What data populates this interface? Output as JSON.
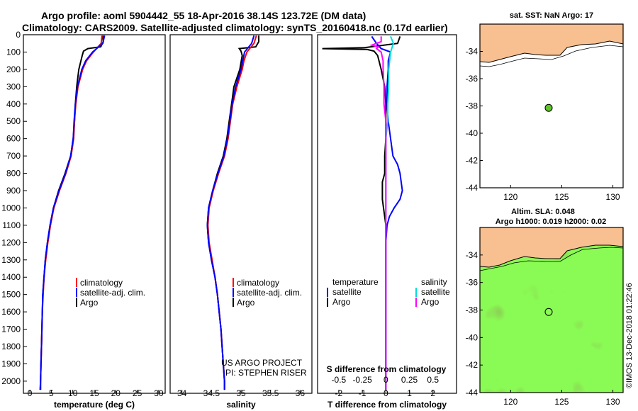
{
  "titles": {
    "line1": "Argo profile: aoml 5904442_55 18-Apr-2016 38.14S 123.72E (DM data)",
    "line2": "Climatology: CARS2009. Satellite-adjusted climatology: synTS_20160418.nc (0.17d earlier)"
  },
  "watermark": "©IMOS 13-Dec-2018 01:22:46",
  "colors": {
    "climatology": "#ff0000",
    "satellite": "#0000ff",
    "argo": "#000000",
    "sal_sat": "#00dddd",
    "sal_argo": "#ff00ff",
    "land": "#f8c090"
  },
  "chart_data": [
    {
      "type": "line",
      "id": "temperature",
      "xlabel": "temperature (deg C)",
      "xlim": [
        -1.5,
        31.5
      ],
      "ylim": [
        2070,
        0
      ],
      "xticks": [
        "0",
        "5",
        "10",
        "15",
        "20",
        "25",
        "30"
      ],
      "yticks": [
        "0",
        "100",
        "200",
        "300",
        "400",
        "500",
        "600",
        "700",
        "800",
        "900",
        "1000",
        "1100",
        "1200",
        "1300",
        "1400",
        "1500",
        "1600",
        "1700",
        "1800",
        "1900",
        "2000"
      ],
      "legend": [
        "climatology",
        "satellite-adj. clim.",
        "Argo"
      ],
      "series": [
        {
          "name": "Argo",
          "depth": [
            5,
            40,
            70,
            80,
            95,
            120,
            200,
            300,
            400,
            500,
            600,
            700,
            800,
            900,
            1000,
            1100,
            1200,
            1300,
            1400,
            1500,
            1600,
            1700,
            1800,
            1900,
            2000,
            2050
          ],
          "values": [
            17.0,
            17.1,
            16.5,
            13.5,
            12.5,
            12.2,
            11.4,
            10.9,
            10.6,
            10.4,
            10.1,
            9.5,
            8.2,
            6.7,
            5.5,
            4.7,
            4.1,
            3.6,
            3.3,
            3.0,
            2.9,
            2.8,
            2.7,
            2.6,
            2.5,
            2.4
          ]
        },
        {
          "name": "climatology",
          "depth": [
            5,
            50,
            100,
            150,
            200,
            300,
            400,
            500,
            600,
            700,
            800,
            900,
            1000,
            1100,
            1200,
            1300,
            1400,
            1500,
            1600,
            1700,
            1800,
            1900,
            2000,
            2050
          ],
          "values": [
            16.8,
            16.6,
            14.8,
            13.2,
            12.3,
            11.2,
            10.7,
            10.4,
            10.2,
            9.6,
            8.4,
            6.9,
            5.6,
            4.8,
            4.2,
            3.7,
            3.3,
            3.1,
            2.9,
            2.8,
            2.7,
            2.6,
            2.5,
            2.5
          ]
        },
        {
          "name": "satellite-adj. clim.",
          "depth": [
            5,
            50,
            100,
            150,
            200,
            300,
            400,
            500,
            600,
            700,
            800,
            900,
            1000,
            1100,
            1200,
            1300,
            1400,
            1500,
            1600,
            1700,
            1800,
            1900,
            2000,
            2050
          ],
          "values": [
            17.4,
            17.0,
            14.6,
            13.0,
            12.1,
            11.1,
            10.6,
            10.3,
            10.1,
            9.5,
            8.3,
            6.8,
            5.5,
            4.7,
            4.1,
            3.6,
            3.3,
            3.0,
            2.9,
            2.8,
            2.7,
            2.6,
            2.5,
            2.5
          ]
        }
      ]
    },
    {
      "type": "line",
      "id": "salinity",
      "xlabel": "salinity",
      "xlim": [
        33.8,
        36.2
      ],
      "ylim": [
        2070,
        0
      ],
      "xticks": [
        "34",
        "34.5",
        "35",
        "35.5",
        "36"
      ],
      "legend": [
        "climatology",
        "satellite-adj. clim.",
        "Argo"
      ],
      "annotation": [
        "US ARGO PROJECT",
        "PI: STEPHEN RISER"
      ],
      "series": [
        {
          "name": "Argo",
          "depth": [
            5,
            40,
            70,
            80,
            95,
            120,
            200,
            300,
            400,
            500,
            600,
            700,
            800,
            900,
            1000,
            1100,
            1200,
            1300,
            1400,
            1500,
            1600,
            1700,
            1800,
            1900,
            2000,
            2050
          ],
          "values": [
            35.3,
            35.3,
            35.25,
            34.97,
            35.0,
            35.02,
            34.98,
            34.88,
            34.84,
            34.8,
            34.76,
            34.7,
            34.6,
            34.52,
            34.45,
            34.43,
            34.45,
            34.5,
            34.56,
            34.6,
            34.63,
            34.66,
            34.68,
            34.7,
            34.72,
            34.72
          ]
        },
        {
          "name": "climatology",
          "depth": [
            5,
            50,
            100,
            150,
            200,
            300,
            400,
            500,
            600,
            700,
            800,
            900,
            1000,
            1100,
            1200,
            1300,
            1400,
            1500,
            1600,
            1700,
            1800,
            1900,
            2000,
            2050
          ],
          "values": [
            35.26,
            35.22,
            35.1,
            35.05,
            35.02,
            34.93,
            34.86,
            34.82,
            34.78,
            34.72,
            34.62,
            34.53,
            34.46,
            34.44,
            34.46,
            34.51,
            34.56,
            34.6,
            34.63,
            34.66,
            34.68,
            34.7,
            34.72,
            34.72
          ]
        },
        {
          "name": "satellite-adj. clim.",
          "depth": [
            5,
            50,
            100,
            150,
            200,
            300,
            400,
            500,
            600,
            700,
            800,
            900,
            1000,
            1100,
            1200,
            1300,
            1400,
            1500,
            1600,
            1700,
            1800,
            1900,
            2000,
            2050
          ],
          "values": [
            35.22,
            35.18,
            35.06,
            35.03,
            35.0,
            34.91,
            34.85,
            34.81,
            34.77,
            34.71,
            34.61,
            34.52,
            34.45,
            34.43,
            34.45,
            34.5,
            34.56,
            34.6,
            34.63,
            34.66,
            34.68,
            34.7,
            34.72,
            34.72
          ]
        }
      ]
    },
    {
      "type": "line",
      "id": "difference",
      "xlabel": "T difference from climatology",
      "xlim": [
        -2.9,
        3.0
      ],
      "ylim": [
        2070,
        0
      ],
      "xticks": [
        "-2",
        "-1",
        "0",
        "1",
        "2"
      ],
      "s_label": "S difference from climatology",
      "s_ticks": [
        "-0.5",
        "-0.25",
        "0",
        "0.25",
        "0.5"
      ],
      "legend_left": {
        "title": "temperature",
        "items": [
          "satellite",
          "Argo"
        ]
      },
      "legend_right": {
        "title": "salinity",
        "items": [
          "satellite",
          "Argo"
        ]
      },
      "series": [
        {
          "name": "T Argo",
          "depth": [
            10,
            50,
            75,
            80,
            85,
            95,
            120,
            200,
            300,
            400,
            500,
            600,
            700,
            800,
            850,
            900,
            950,
            1000,
            1050,
            1100,
            1200,
            1400,
            1600,
            1800,
            2000,
            2050
          ],
          "values": [
            0.6,
            0.5,
            -0.9,
            -2.7,
            -0.8,
            -0.5,
            -0.35,
            -0.2,
            -0.05,
            0.0,
            0.0,
            0.0,
            -0.05,
            -0.05,
            -0.15,
            -0.15,
            -0.15,
            -0.1,
            -0.05,
            0.0,
            0.0,
            0.0,
            0.0,
            0.0,
            0.0,
            0.0
          ]
        },
        {
          "name": "T satellite",
          "depth": [
            10,
            50,
            80,
            100,
            150,
            200,
            300,
            400,
            500,
            600,
            700,
            750,
            800,
            850,
            900,
            950,
            1000,
            1050,
            1100,
            1200,
            1400,
            1600,
            1800,
            2000,
            2050
          ],
          "values": [
            -0.6,
            -0.4,
            -0.2,
            0.2,
            0.1,
            0.1,
            0.05,
            0.05,
            0.1,
            0.2,
            0.3,
            0.5,
            0.6,
            0.65,
            0.7,
            0.6,
            0.35,
            0.15,
            0.05,
            0.0,
            0.0,
            0.0,
            0.0,
            0.0,
            0.0
          ]
        },
        {
          "name": "S satellite",
          "depth": [
            10,
            50,
            100,
            200,
            300,
            400,
            500,
            600,
            700,
            800,
            900,
            1000,
            1100,
            1200,
            1400,
            1600,
            1800,
            2000,
            2050
          ],
          "values": [
            0.05,
            0.08,
            0.05,
            0.03,
            0.03,
            0.02,
            0.02,
            0.0,
            0.0,
            0.0,
            0.0,
            0.0,
            0.0,
            0.0,
            0.0,
            0.0,
            0.0,
            0.0,
            0.0
          ]
        },
        {
          "name": "S Argo",
          "depth": [
            10,
            40,
            60,
            70,
            80,
            100,
            150,
            200,
            300,
            400,
            500,
            600,
            700,
            800,
            900,
            1000,
            1100,
            1200,
            1400,
            1600,
            1800,
            2000,
            2050
          ],
          "values": [
            -0.05,
            -0.05,
            -0.15,
            -0.08,
            -0.1,
            -0.05,
            -0.03,
            -0.03,
            -0.02,
            -0.02,
            0.0,
            0.0,
            0.0,
            0.0,
            0.0,
            0.0,
            0.0,
            0.0,
            0.0,
            0.0,
            0.0,
            0.0,
            0.0
          ]
        }
      ]
    },
    {
      "type": "map",
      "id": "sst",
      "title": "sat. SST: NaN Argo: 17",
      "xlim": [
        117,
        131
      ],
      "ylim": [
        -44,
        -32
      ],
      "xticks": [
        "120",
        "125",
        "130"
      ],
      "yticks": [
        "-34",
        "-36",
        "-38",
        "-40",
        "-42",
        "-44"
      ],
      "marker": {
        "lon": 123.72,
        "lat": -38.14
      }
    },
    {
      "type": "map",
      "id": "altimetry",
      "title": "Altim. SLA: 0.048",
      "subtitle": "Argo h1000: 0.019 h2000: 0.02",
      "xlim": [
        117,
        131
      ],
      "ylim": [
        -44,
        -32
      ],
      "xticks": [
        "120",
        "125",
        "130"
      ],
      "yticks": [
        "-34",
        "-36",
        "-38",
        "-40",
        "-42",
        "-44"
      ],
      "marker": {
        "lon": 123.72,
        "lat": -38.14
      }
    }
  ]
}
